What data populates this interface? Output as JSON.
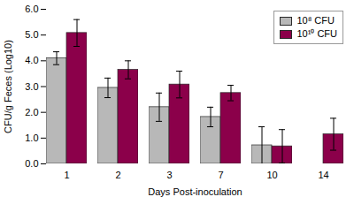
{
  "chart_data": {
    "type": "bar",
    "xlabel": "Days Post-inoculation",
    "ylabel": "CFU/g Feces (Log10)",
    "categories": [
      "1",
      "2",
      "3",
      "7",
      "10",
      "14"
    ],
    "series": [
      {
        "name": "10⁸ CFU",
        "color": "#b8b8b8",
        "values": [
          4.1,
          2.95,
          2.2,
          1.82,
          0.72,
          0.0
        ],
        "errors": [
          0.25,
          0.38,
          0.55,
          0.38,
          0.72,
          0.0
        ]
      },
      {
        "name": "10¹⁰ CFU",
        "color": "#8b004a",
        "values": [
          5.08,
          3.65,
          3.08,
          2.75,
          0.68,
          1.15
        ],
        "errors": [
          0.52,
          0.35,
          0.52,
          0.3,
          0.65,
          0.62
        ]
      }
    ],
    "ylim": [
      0,
      6
    ],
    "yticks": [
      0,
      1,
      2,
      3,
      4,
      5,
      6
    ],
    "grid": false,
    "legend": "upper right"
  }
}
